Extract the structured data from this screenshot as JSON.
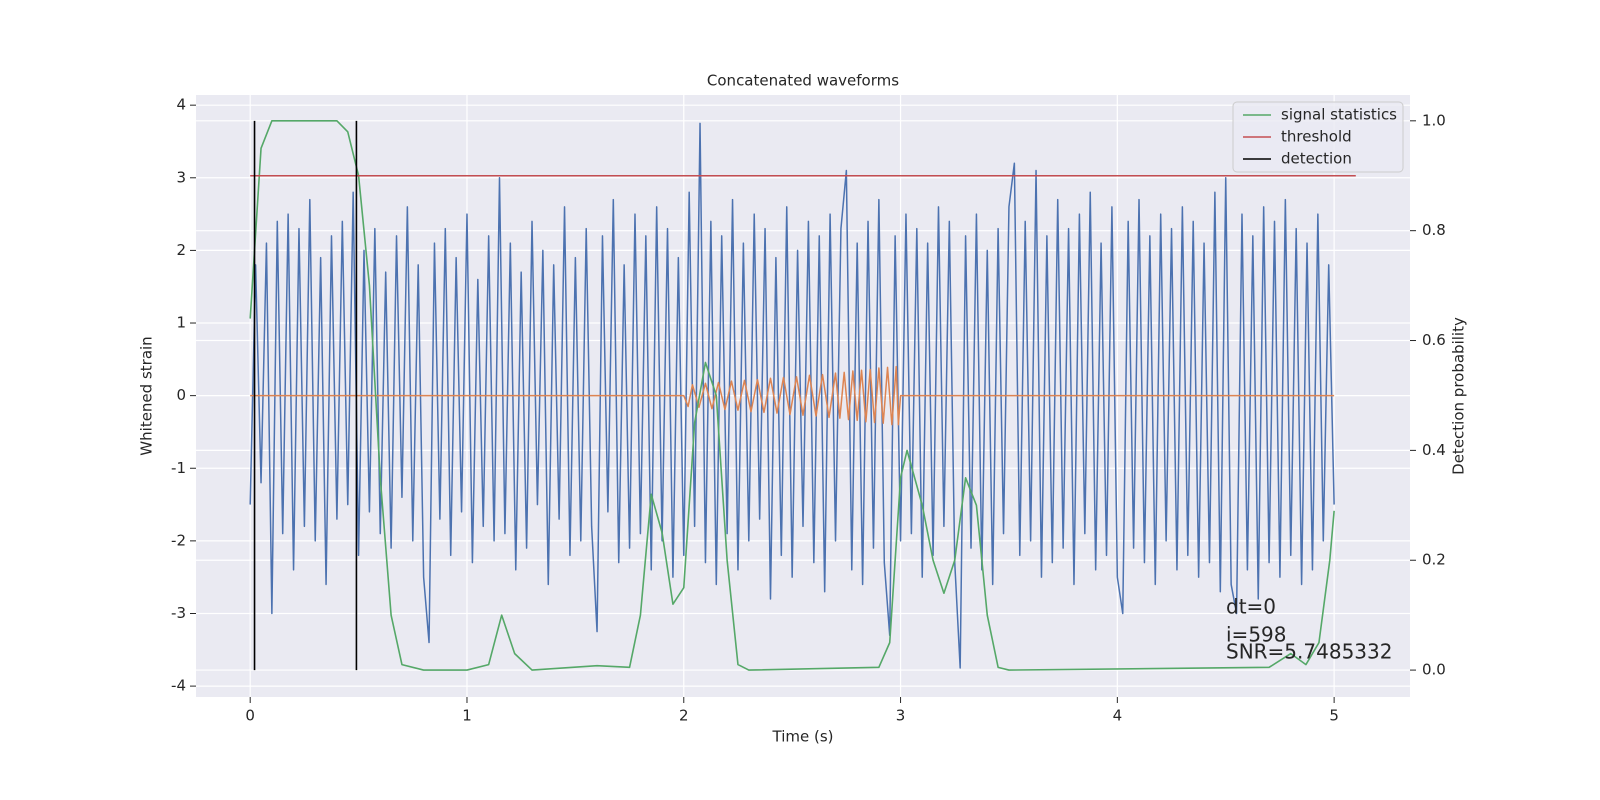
{
  "chart_data": {
    "type": "line",
    "title": "Concatenated waveforms",
    "xlabel": "Time (s)",
    "ylabel": "Whitened strain",
    "y2label": "Detection probability",
    "annotations": [
      "dt=0",
      "i=598",
      "SNR=5.7485332"
    ],
    "xlim": [
      -0.25,
      5.35
    ],
    "ylim": [
      -4.15,
      4.14
    ],
    "y2lim": [
      -0.049,
      1.047
    ],
    "xticks": [
      0,
      1,
      2,
      3,
      4,
      5
    ],
    "yticks": [
      -4,
      -3,
      -2,
      -1,
      0,
      1,
      2,
      3,
      4
    ],
    "y2ticks": [
      {
        "value": 0,
        "label": "0.0"
      },
      0.2,
      0.4,
      0.6,
      0.8,
      {
        "value": 1,
        "label": "1.0"
      }
    ],
    "grid": true,
    "legend": "upper right",
    "series": [
      {
        "color": "#4c72b0",
        "x": [
          0,
          0.025,
          0.05,
          0.075,
          0.1,
          0.125,
          0.15,
          0.175,
          0.2,
          0.225,
          0.25,
          0.275,
          0.3,
          0.325,
          0.35,
          0.375,
          0.4,
          0.425,
          0.45,
          0.475,
          0.5,
          0.525,
          0.55,
          0.575,
          0.6,
          0.625,
          0.65,
          0.675,
          0.7,
          0.725,
          0.75,
          0.775,
          0.8,
          0.825,
          0.85,
          0.875,
          0.9,
          0.925,
          0.95,
          0.975,
          1,
          1.025,
          1.05,
          1.075,
          1.1,
          1.125,
          1.15,
          1.175,
          1.2,
          1.225,
          1.25,
          1.275,
          1.3,
          1.325,
          1.35,
          1.375,
          1.4,
          1.425,
          1.45,
          1.475,
          1.5,
          1.525,
          1.55,
          1.575,
          1.6,
          1.625,
          1.65,
          1.675,
          1.7,
          1.725,
          1.75,
          1.775,
          1.8,
          1.825,
          1.85,
          1.875,
          1.9,
          1.925,
          1.95,
          1.975,
          2,
          2.025,
          2.05,
          2.075,
          2.1,
          2.125,
          2.15,
          2.175,
          2.2,
          2.225,
          2.25,
          2.275,
          2.3,
          2.325,
          2.35,
          2.375,
          2.4,
          2.425,
          2.45,
          2.475,
          2.5,
          2.525,
          2.55,
          2.575,
          2.6,
          2.625,
          2.65,
          2.675,
          2.7,
          2.725,
          2.75,
          2.775,
          2.8,
          2.825,
          2.85,
          2.875,
          2.9,
          2.925,
          2.95,
          2.975,
          3,
          3.025,
          3.05,
          3.075,
          3.1,
          3.125,
          3.15,
          3.175,
          3.2,
          3.225,
          3.25,
          3.275,
          3.3,
          3.325,
          3.35,
          3.375,
          3.4,
          3.425,
          3.45,
          3.475,
          3.5,
          3.525,
          3.55,
          3.575,
          3.6,
          3.625,
          3.65,
          3.675,
          3.7,
          3.725,
          3.75,
          3.775,
          3.8,
          3.825,
          3.85,
          3.875,
          3.9,
          3.925,
          3.95,
          3.975,
          4,
          4.025,
          4.05,
          4.075,
          4.1,
          4.125,
          4.15,
          4.175,
          4.2,
          4.225,
          4.25,
          4.275,
          4.3,
          4.325,
          4.35,
          4.375,
          4.4,
          4.425,
          4.45,
          4.475,
          4.5,
          4.525,
          4.55,
          4.575,
          4.6,
          4.625,
          4.65,
          4.675,
          4.7,
          4.725,
          4.75,
          4.775,
          4.8,
          4.825,
          4.85,
          4.875,
          4.9,
          4.925,
          4.95,
          4.975,
          5
        ],
        "values": [
          -1.5,
          1.8,
          -1.2,
          2.1,
          -3.0,
          2.4,
          -1.9,
          2.5,
          -2.4,
          2.3,
          -1.8,
          2.7,
          -2.0,
          1.9,
          -2.6,
          2.2,
          -1.7,
          2.4,
          -1.5,
          2.8,
          -2.2,
          2.0,
          -1.6,
          2.3,
          -1.9,
          1.7,
          -2.1,
          2.2,
          -1.4,
          2.6,
          -2.0,
          1.8,
          -2.5,
          -3.4,
          2.1,
          -1.7,
          2.3,
          -2.2,
          1.9,
          -1.6,
          2.5,
          -2.3,
          1.6,
          -1.8,
          2.2,
          -2.0,
          3.0,
          -1.9,
          2.1,
          -2.4,
          1.7,
          -2.1,
          2.4,
          -1.5,
          2.0,
          -2.6,
          1.8,
          -1.7,
          2.6,
          -2.2,
          1.9,
          -2.0,
          2.3,
          -1.8,
          -3.25,
          2.2,
          -1.6,
          2.7,
          -2.3,
          1.8,
          -2.1,
          2.5,
          -1.9,
          2.2,
          -2.4,
          2.6,
          -2.0,
          2.3,
          -2.5,
          1.9,
          -2.2,
          2.8,
          -1.8,
          3.75,
          -2.3,
          2.4,
          -2.6,
          2.2,
          -1.9,
          2.7,
          -2.4,
          2.1,
          -2.0,
          2.5,
          -1.7,
          2.3,
          -2.8,
          1.9,
          -2.2,
          2.6,
          -2.5,
          2.0,
          -1.8,
          2.4,
          -2.3,
          2.2,
          -2.7,
          2.5,
          -2.0,
          2.3,
          3.1,
          -2.4,
          2.1,
          -2.6,
          2.4,
          -2.1,
          2.7,
          -2.3,
          -3.3,
          2.2,
          -2.0,
          2.5,
          -1.9,
          2.3,
          -2.5,
          2.1,
          -2.2,
          2.6,
          -1.8,
          2.4,
          -2.3,
          -3.75,
          2.2,
          -2.1,
          2.5,
          -2.4,
          2.0,
          -2.6,
          2.3,
          -1.9,
          2.6,
          3.2,
          -2.2,
          2.4,
          -2.0,
          3.1,
          -2.5,
          2.2,
          -2.3,
          2.7,
          -2.1,
          2.3,
          -2.6,
          2.5,
          -1.9,
          2.8,
          -2.4,
          2.1,
          -2.2,
          2.6,
          -2.5,
          -3.0,
          2.4,
          -2.1,
          2.7,
          -2.3,
          2.2,
          -2.6,
          2.5,
          -2.0,
          2.3,
          -2.4,
          2.6,
          -2.2,
          2.4,
          -2.5,
          2.1,
          -2.3,
          2.8,
          -2.7,
          3.0,
          -2.6,
          -3.0,
          2.5,
          -2.4,
          2.2,
          -2.8,
          2.6,
          -2.3,
          2.4,
          -2.5,
          2.7,
          -2.2,
          2.3,
          -2.6,
          2.1,
          -2.4,
          2.5,
          -2.0,
          1.8,
          -1.5
        ]
      },
      {
        "color": "#dd8452",
        "x": [
          0,
          2.0,
          2.02,
          2.04,
          2.07,
          2.1,
          2.13,
          2.16,
          2.19,
          2.22,
          2.25,
          2.28,
          2.31,
          2.34,
          2.37,
          2.4,
          2.43,
          2.46,
          2.49,
          2.52,
          2.55,
          2.58,
          2.61,
          2.64,
          2.67,
          2.7,
          2.72,
          2.74,
          2.76,
          2.78,
          2.8,
          2.82,
          2.84,
          2.86,
          2.88,
          2.9,
          2.92,
          2.94,
          2.96,
          2.98,
          2.99,
          3.0,
          5
        ],
        "values": [
          0,
          0,
          -0.15,
          0.15,
          -0.16,
          0.17,
          -0.18,
          0.18,
          -0.19,
          0.2,
          -0.2,
          0.21,
          -0.22,
          0.22,
          -0.23,
          0.24,
          -0.24,
          0.25,
          -0.26,
          0.26,
          -0.27,
          0.28,
          -0.28,
          0.29,
          -0.3,
          0.31,
          -0.31,
          0.32,
          -0.33,
          0.34,
          -0.34,
          0.35,
          -0.36,
          0.36,
          -0.37,
          0.38,
          -0.38,
          0.39,
          -0.4,
          0.4,
          -0.4,
          0,
          0
        ]
      },
      {
        "name": "signal statistics",
        "color": "#55a868",
        "axis": "y2",
        "x": [
          0,
          0.05,
          0.1,
          0.4,
          0.45,
          0.5,
          0.55,
          0.6,
          0.65,
          0.7,
          0.8,
          1.0,
          1.1,
          1.16,
          1.22,
          1.3,
          1.6,
          1.75,
          1.8,
          1.85,
          1.9,
          1.95,
          2.0,
          2.05,
          2.1,
          2.15,
          2.2,
          2.25,
          2.3,
          2.9,
          2.95,
          3.0,
          3.03,
          3.1,
          3.15,
          3.2,
          3.25,
          3.3,
          3.35,
          3.4,
          3.45,
          3.5,
          4.7,
          4.8,
          4.87,
          4.93,
          4.98,
          5.0
        ],
        "values": [
          0.64,
          0.95,
          1.0,
          1.0,
          0.98,
          0.9,
          0.7,
          0.35,
          0.1,
          0.01,
          0.0,
          0.0,
          0.01,
          0.1,
          0.03,
          0.0,
          0.008,
          0.005,
          0.1,
          0.32,
          0.25,
          0.12,
          0.15,
          0.45,
          0.56,
          0.5,
          0.2,
          0.01,
          0.0,
          0.005,
          0.05,
          0.35,
          0.4,
          0.3,
          0.2,
          0.14,
          0.2,
          0.35,
          0.3,
          0.1,
          0.005,
          0.0,
          0.005,
          0.03,
          0.01,
          0.05,
          0.2,
          0.29
        ]
      },
      {
        "name": "threshold",
        "color": "#c44e52",
        "axis": "y2",
        "x": [
          0,
          5.1
        ],
        "values": [
          0.9,
          0.9
        ]
      },
      {
        "name": "detection",
        "color": "#000000",
        "axis": "y2",
        "x": [
          0.02,
          0.02,
          null,
          0.49,
          0.49
        ],
        "values": [
          0,
          1,
          null,
          0,
          1
        ]
      }
    ]
  }
}
